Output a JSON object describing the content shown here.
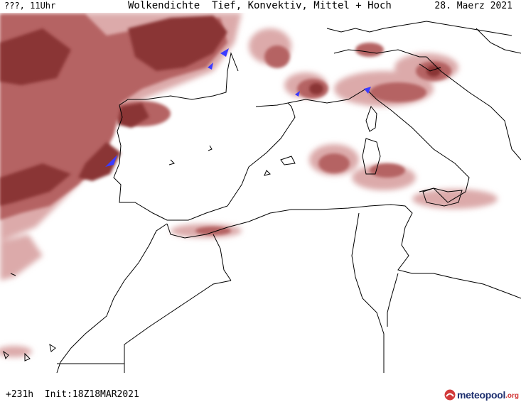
{
  "header": {
    "left_label": "???, 11Uhr",
    "title": "Wolkendichte  Tief, Konvektiv, Mittel + Hoch",
    "date": "28. Maerz 2021"
  },
  "footer": {
    "run_info": "+231h  Init:18Z18MAR2021"
  },
  "logo": {
    "name": "meteopool",
    "suffix": ".org"
  },
  "colors": {
    "background": "#ffffff",
    "cloud_light": "#d9a1a1",
    "cloud_mid": "#b76a6a",
    "cloud_dark": "#8e3a3a",
    "precip": "#3b3bff",
    "coastline": "#000000"
  }
}
